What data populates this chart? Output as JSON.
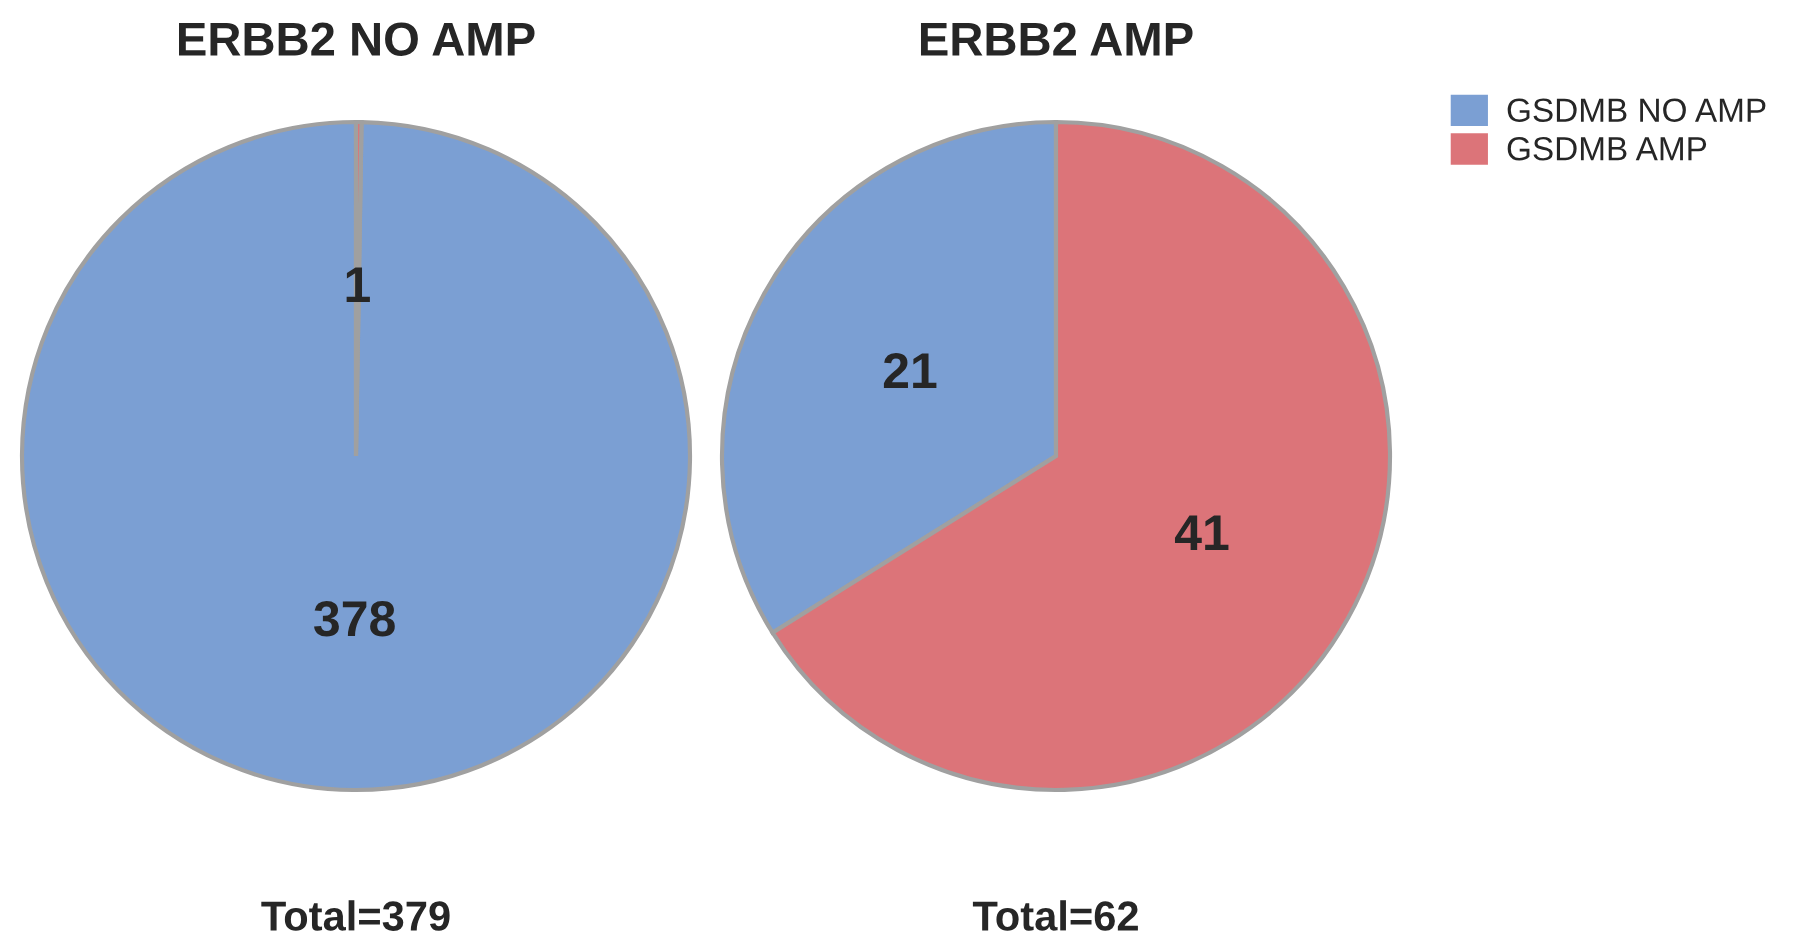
{
  "chart_data": [
    {
      "type": "pie",
      "title": "ERBB2 NO AMP",
      "categories": [
        "GSDMB NO AMP",
        "GSDMB AMP"
      ],
      "values": [
        378,
        1
      ],
      "colors": [
        "#7b9fd3",
        "#dc7479"
      ],
      "data_labels": true,
      "annotations": [
        "Total=379"
      ],
      "legend": "right"
    },
    {
      "type": "pie",
      "title": "ERBB2 AMP",
      "categories": [
        null,
        null
      ],
      "values": [
        21,
        41
      ],
      "colors": [
        "#7b9fd3",
        "#dc7479"
      ],
      "data_labels": true,
      "annotations": [
        "Total=62"
      ]
    }
  ]
}
